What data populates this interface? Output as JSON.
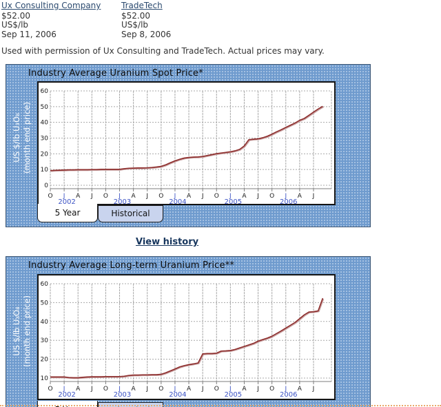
{
  "header": {
    "sources": [
      {
        "name": "Ux Consulting Company",
        "price": "$52.00",
        "unit": "US$/lb",
        "date": "Sep 11, 2006"
      },
      {
        "name": "TradeTech",
        "price": "$52.00",
        "unit": "US$/lb",
        "date": "Sep 8, 2006"
      }
    ],
    "permission_note": "Used with permission of Ux Consulting and TradeTech. Actual prices may vary."
  },
  "view_history_label": "View history",
  "tabs": {
    "five_year": "5 Year",
    "historical": "Historical"
  },
  "colors": {
    "panel_bg": "#6f9bce",
    "panel_dot": "#a9c4e4",
    "plot_line": "#8e2f2e",
    "plot_line_shadow": "#c7a0a0",
    "grid": "#a8a8a8",
    "axis": "#7d7d7d",
    "tick_text": "#1a1a1a",
    "jan_tick_text": "#3b52c4",
    "year_text": "#3b52c4",
    "tab_inactive_bg": "#c9d4ee",
    "link": "#2b4a6f",
    "view_history_link": "#17365d",
    "divider": "#e9a869"
  },
  "chart_data": [
    {
      "type": "line",
      "title": "Industry Average Uranium Spot Price*",
      "ylabel_line1": "US $/lb U₃O₈",
      "ylabel_line2": "(month end price)",
      "yticks": [
        60,
        50,
        40,
        30,
        20,
        10,
        0
      ],
      "ylim": [
        0,
        63
      ],
      "grid": true,
      "x_interval": "monthly",
      "x_start": "Oct 2001",
      "x_end": "Sep 2006",
      "x_ticks": [
        {
          "label": "O"
        },
        {
          "label": "J",
          "year": "2002"
        },
        {
          "label": "A"
        },
        {
          "label": "J"
        },
        {
          "label": "O"
        },
        {
          "label": "J",
          "year": "2003"
        },
        {
          "label": "A"
        },
        {
          "label": "J"
        },
        {
          "label": "O"
        },
        {
          "label": "J",
          "year": "2004"
        },
        {
          "label": "A"
        },
        {
          "label": "J"
        },
        {
          "label": "O"
        },
        {
          "label": "J",
          "year": "2005"
        },
        {
          "label": "A"
        },
        {
          "label": "J"
        },
        {
          "label": "O"
        },
        {
          "label": "J",
          "year": "2006"
        },
        {
          "label": "A"
        },
        {
          "label": "J"
        }
      ],
      "series": [
        {
          "name": "spot_price_us_per_lb",
          "values": [
            9.3,
            9.5,
            9.6,
            9.7,
            9.8,
            9.8,
            9.9,
            9.9,
            9.9,
            10.0,
            10.0,
            10.1,
            10.1,
            10.1,
            10.1,
            10.1,
            10.5,
            10.8,
            10.9,
            11.0,
            11.0,
            11.1,
            11.3,
            11.6,
            12.0,
            13.0,
            14.3,
            15.5,
            16.5,
            17.3,
            17.7,
            17.9,
            18.0,
            18.3,
            18.9,
            19.5,
            20.1,
            20.5,
            20.9,
            21.3,
            21.9,
            22.8,
            25.0,
            29.0,
            29.3,
            29.5,
            30.2,
            31.2,
            32.5,
            34.0,
            35.3,
            36.8,
            38.2,
            39.6,
            41.3,
            42.5,
            44.5,
            46.5,
            48.5,
            50.2
          ]
        }
      ]
    },
    {
      "type": "line",
      "title": "Industry Average Long-term Uranium Price**",
      "ylabel_line1": "US $/lb U₃O₈",
      "ylabel_line2": "(month end price)",
      "yticks": [
        60,
        50,
        40,
        30,
        20,
        10
      ],
      "ylim": [
        8,
        63
      ],
      "grid": true,
      "x_interval": "monthly",
      "x_start": "Oct 2001",
      "x_end": "Sep 2006",
      "x_ticks": [
        {
          "label": "O"
        },
        {
          "label": "J",
          "year": "2002"
        },
        {
          "label": "A"
        },
        {
          "label": "J"
        },
        {
          "label": "O"
        },
        {
          "label": "J",
          "year": "2003"
        },
        {
          "label": "A"
        },
        {
          "label": "J"
        },
        {
          "label": "O"
        },
        {
          "label": "J",
          "year": "2004"
        },
        {
          "label": "A"
        },
        {
          "label": "J"
        },
        {
          "label": "O"
        },
        {
          "label": "J",
          "year": "2005"
        },
        {
          "label": "A"
        },
        {
          "label": "J"
        },
        {
          "label": "O"
        },
        {
          "label": "J",
          "year": "2006"
        },
        {
          "label": "A"
        },
        {
          "label": "J"
        }
      ],
      "series": [
        {
          "name": "long_term_price_us_per_lb",
          "values": [
            10.6,
            10.6,
            10.6,
            10.6,
            10.3,
            10.2,
            10.2,
            10.4,
            10.6,
            10.7,
            10.7,
            10.7,
            10.8,
            10.8,
            10.8,
            10.8,
            11.0,
            11.4,
            11.6,
            11.6,
            11.7,
            11.7,
            11.8,
            11.8,
            12.0,
            12.8,
            13.8,
            14.8,
            15.9,
            16.6,
            17.1,
            17.5,
            18.0,
            22.8,
            23.0,
            23.0,
            23.2,
            24.3,
            24.4,
            24.6,
            25.2,
            26.0,
            26.8,
            27.6,
            28.4,
            29.6,
            30.4,
            31.2,
            32.2,
            33.6,
            35.0,
            36.5,
            38.0,
            39.5,
            41.5,
            43.5,
            45.0,
            45.2,
            45.6,
            52.3
          ]
        }
      ]
    }
  ]
}
